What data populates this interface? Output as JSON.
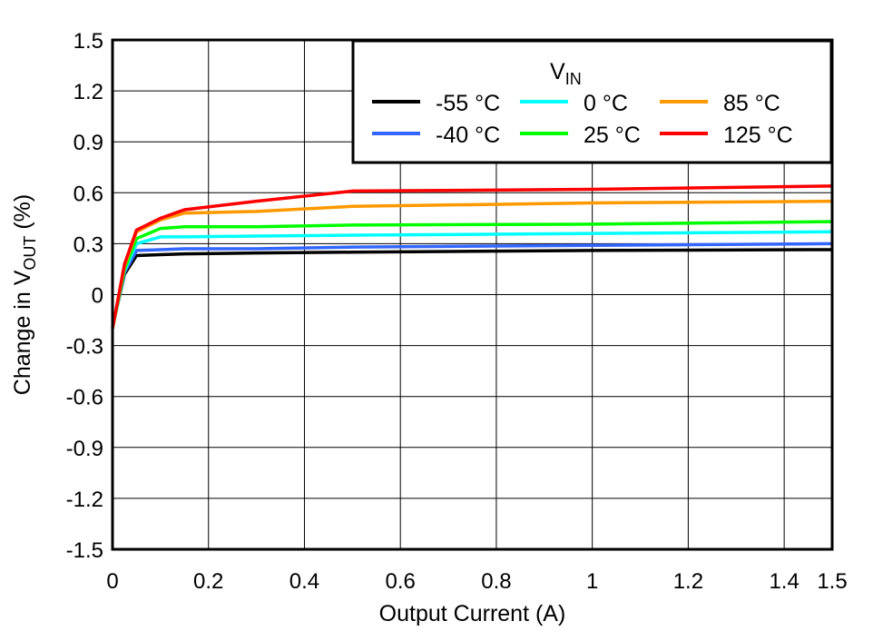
{
  "chart_data": {
    "type": "line",
    "xlabel": "Output Current (A)",
    "ylabel_main": "Change in V",
    "ylabel_sub": "OUT",
    "ylabel_unit": " (%)",
    "xlim": [
      0,
      1.5
    ],
    "ylim": [
      -1.5,
      1.5
    ],
    "xticks": [
      0,
      0.2,
      0.4,
      0.6,
      0.8,
      1,
      1.2,
      1.4,
      1.5
    ],
    "xtick_labels": [
      "0",
      "0.2",
      "0.4",
      "0.6",
      "0.8",
      "1",
      "1.2",
      "1.4",
      "1.5"
    ],
    "yticks": [
      1.5,
      1.2,
      0.9,
      0.6,
      0.3,
      0,
      -0.3,
      -0.6,
      -0.9,
      -1.2,
      -1.5
    ],
    "ytick_labels": [
      "1.5",
      "1.2",
      "0.9",
      "0.6",
      "0.3",
      "0",
      "-0.3",
      "-0.6",
      "-0.9",
      "-1.2",
      "-1.5"
    ],
    "grid": true,
    "legend": {
      "title_main": "V",
      "title_sub": "IN",
      "placement": "top-right"
    },
    "x": [
      0,
      0.025,
      0.05,
      0.1,
      0.15,
      0.3,
      0.5,
      1,
      1.5
    ],
    "series": [
      {
        "name": "-55 °C",
        "color": "#000000",
        "values": [
          -0.19,
          0.12,
          0.23,
          0.235,
          0.24,
          0.245,
          0.25,
          0.26,
          0.265
        ]
      },
      {
        "name": "-40 °C",
        "color": "#3366ff",
        "values": [
          -0.19,
          0.13,
          0.26,
          0.265,
          0.27,
          0.27,
          0.28,
          0.29,
          0.3
        ]
      },
      {
        "name": "0 °C",
        "color": "#00ffff",
        "values": [
          -0.2,
          0.14,
          0.3,
          0.34,
          0.34,
          0.345,
          0.35,
          0.36,
          0.37
        ]
      },
      {
        "name": "25 °C",
        "color": "#00ff00",
        "values": [
          -0.2,
          0.15,
          0.33,
          0.39,
          0.4,
          0.4,
          0.41,
          0.415,
          0.43
        ]
      },
      {
        "name": "85 °C",
        "color": "#ff9900",
        "values": [
          -0.2,
          0.17,
          0.37,
          0.44,
          0.48,
          0.49,
          0.52,
          0.54,
          0.55
        ]
      },
      {
        "name": "125 °C",
        "color": "#ff0000",
        "values": [
          -0.2,
          0.18,
          0.38,
          0.45,
          0.5,
          0.55,
          0.61,
          0.62,
          0.64
        ]
      }
    ]
  }
}
